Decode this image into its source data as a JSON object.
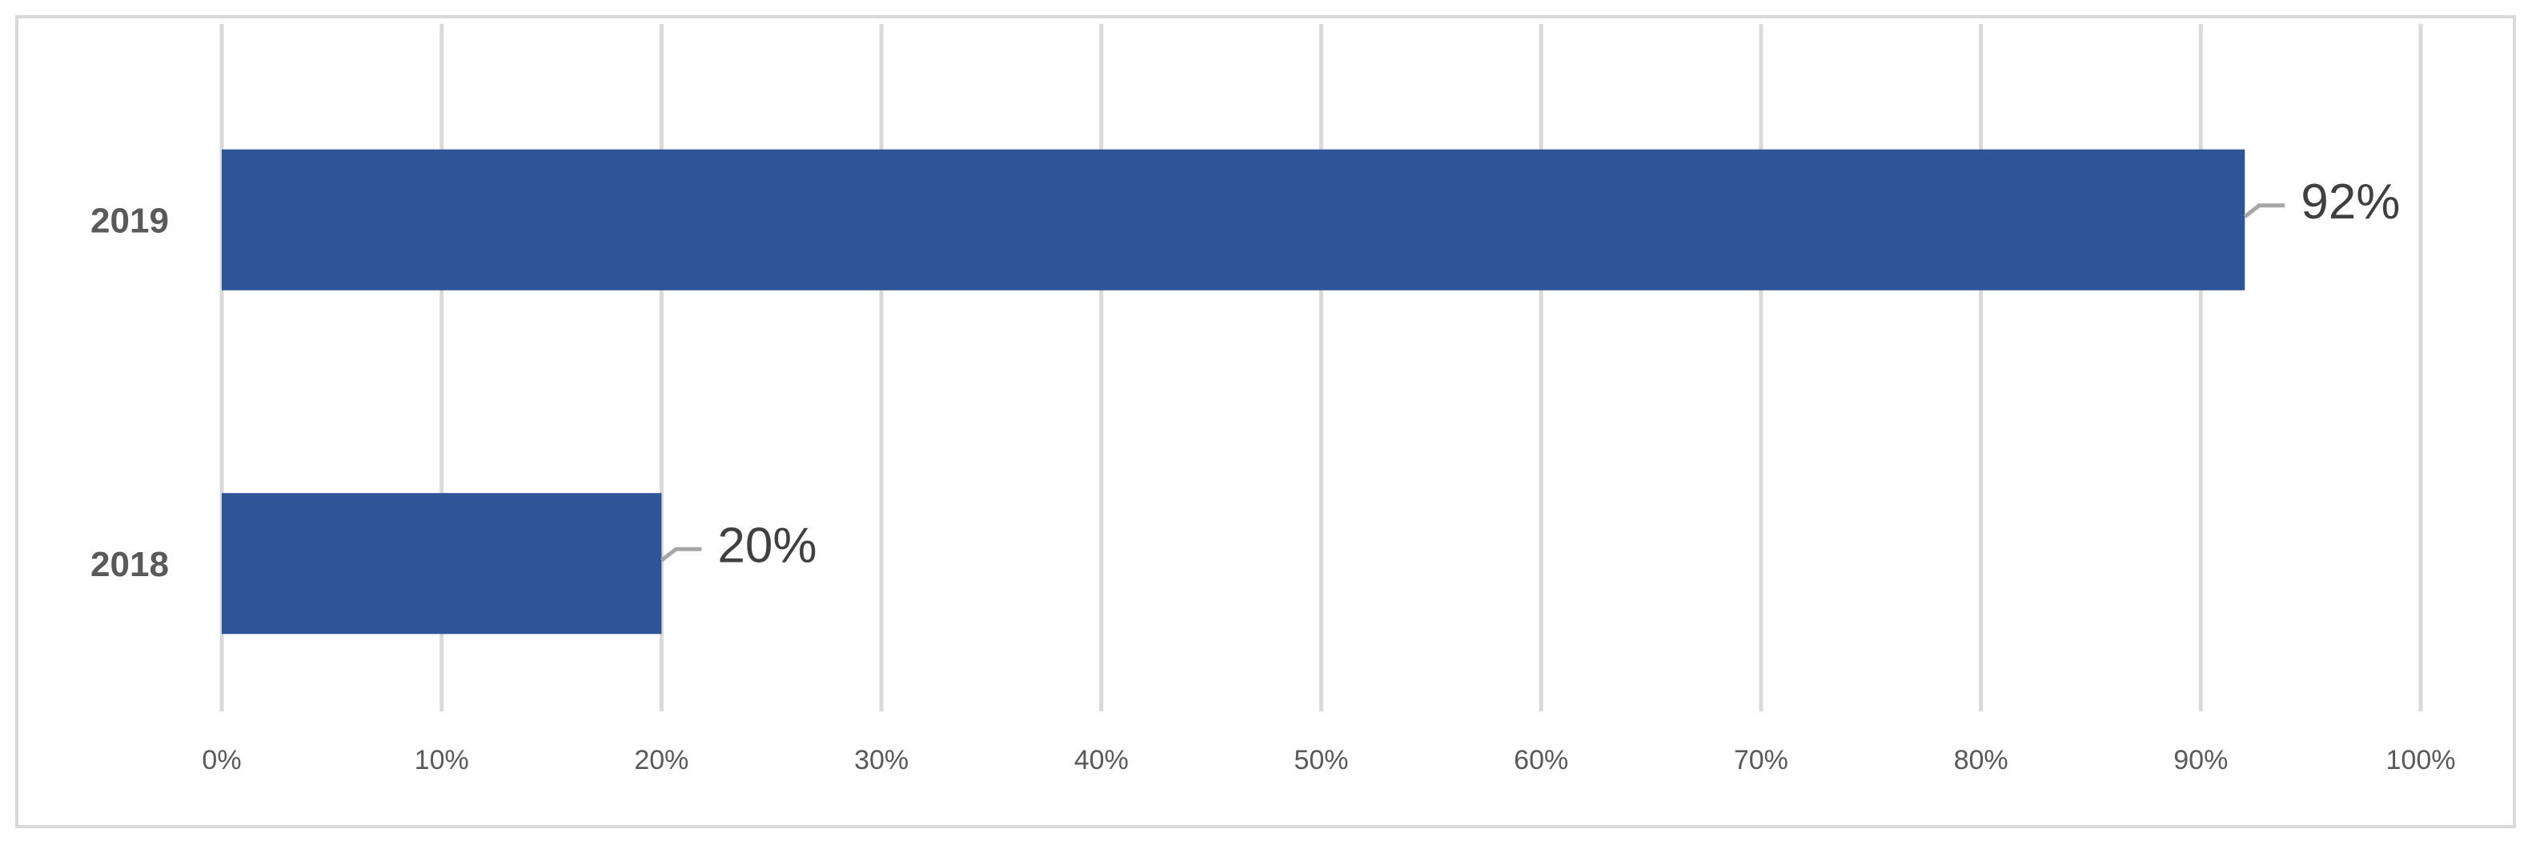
{
  "chart_data": {
    "type": "bar",
    "orientation": "horizontal",
    "categories": [
      "2019",
      "2018"
    ],
    "values": [
      92,
      20
    ],
    "value_labels": [
      "92%",
      "20%"
    ],
    "color": "#2e5597",
    "xlim": [
      0,
      100
    ],
    "xticks": [
      {
        "value": 0,
        "label": "0%"
      },
      {
        "value": 10,
        "label": "10%"
      },
      {
        "value": 20,
        "label": "20%"
      },
      {
        "value": 30,
        "label": "30%"
      },
      {
        "value": 40,
        "label": "40%"
      },
      {
        "value": 50,
        "label": "50%"
      },
      {
        "value": 60,
        "label": "60%"
      },
      {
        "value": 70,
        "label": "70%"
      },
      {
        "value": 80,
        "label": "80%"
      },
      {
        "value": 90,
        "label": "90%"
      },
      {
        "value": 100,
        "label": "100%"
      }
    ],
    "grid": true
  }
}
